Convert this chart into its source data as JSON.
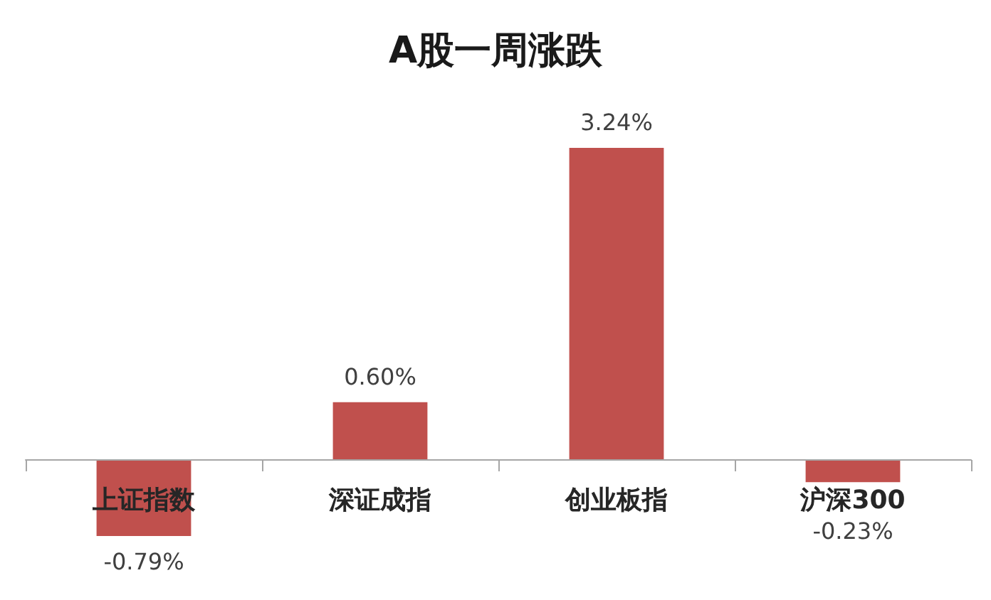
{
  "chart_data": {
    "type": "bar",
    "title": "A股一周涨跌",
    "categories": [
      "上证指数",
      "深证成指",
      "创业板指",
      "沪深300"
    ],
    "values": [
      -0.79,
      0.6,
      3.24,
      -0.23
    ],
    "value_labels": [
      "-0.79%",
      "0.60%",
      "3.24%",
      "-0.23%"
    ],
    "color": "#c0504d"
  }
}
